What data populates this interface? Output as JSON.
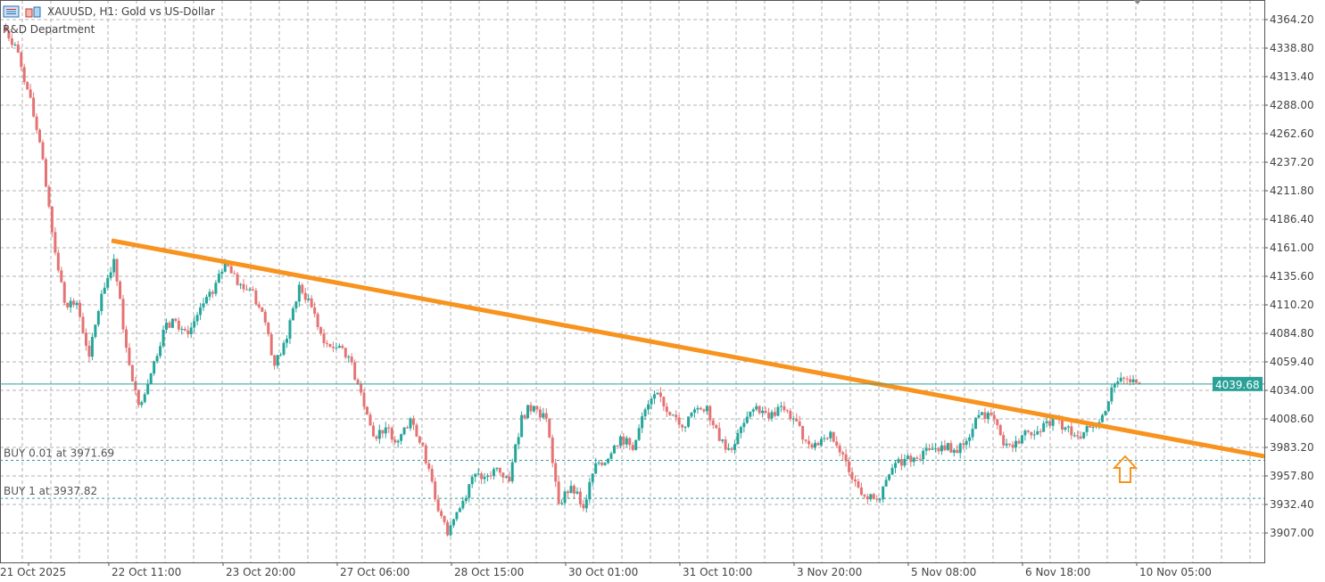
{
  "header": {
    "symbol_line": "XAUUSD, H1:  Gold vs US-Dollar",
    "subtitle": "R&D Department",
    "icons": [
      "chart-list-icon",
      "chart-bars-icon"
    ]
  },
  "colors": {
    "bull": "#26a69a",
    "bear": "#e57373",
    "trendline": "#f7931e",
    "price_line": "#2aa198",
    "grid": "#b0b0b0",
    "arrow": "#f7931e"
  },
  "chart_data": {
    "type": "candlestick",
    "timeframe": "H1",
    "ylim": [
      3887,
      4378
    ],
    "y_ticks": [
      4364.2,
      4338.8,
      4313.4,
      4288.0,
      4262.6,
      4237.2,
      4211.8,
      4186.4,
      4161.0,
      4135.6,
      4110.2,
      4084.8,
      4059.4,
      4034.0,
      4008.6,
      3983.2,
      3957.8,
      3932.4,
      3907.0
    ],
    "x_ticks": [
      "21 Oct 2025",
      "22 Oct 11:00",
      "23 Oct 20:00",
      "27 Oct 06:00",
      "28 Oct 15:00",
      "30 Oct 01:00",
      "31 Oct 10:00",
      "3 Nov 20:00",
      "5 Nov 08:00",
      "6 Nov 18:00",
      "10 Nov 05:00"
    ],
    "closes": [
      4358,
      4342,
      4302,
      4255,
      4175,
      4112,
      4112,
      4064,
      4120,
      4151,
      4072,
      4021,
      4049,
      4088,
      4096,
      4084,
      4108,
      4120,
      4148,
      4128,
      4124,
      4104,
      4056,
      4080,
      4128,
      4108,
      4076,
      4072,
      4064,
      4032,
      3993,
      4001,
      3989,
      4009,
      3985,
      3937,
      3905,
      3929,
      3957,
      3957,
      3965,
      3953,
      4012,
      4020,
      4009,
      3933,
      3949,
      3929,
      3969,
      3973,
      3993,
      3981,
      4017,
      4032,
      4012,
      4001,
      4017,
      4020,
      3989,
      3981,
      4005,
      4020,
      4009,
      4020,
      4009,
      3989,
      3985,
      3997,
      3977,
      3953,
      3937,
      3937,
      3965,
      3973,
      3973,
      3981,
      3985,
      3981,
      3989,
      4012,
      4012,
      3985,
      3989,
      3997,
      3997,
      4009,
      4001,
      3993,
      4001,
      4012,
      4040,
      4044,
      4039.68
    ],
    "current_price": "4039.68",
    "trendline": {
      "start_price": 4167.4,
      "end_price": 3975.3
    },
    "orders": [
      {
        "label": "BUY 0.01 at 3971.69",
        "price": 3971.69
      },
      {
        "label": "BUY 1 at 3937.82",
        "price": 3937.82
      }
    ],
    "annotation": "up-arrow-icon"
  }
}
